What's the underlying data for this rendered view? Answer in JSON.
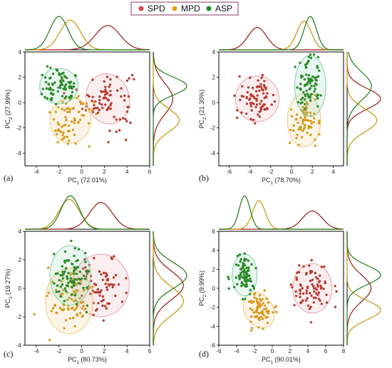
{
  "legend": {
    "entries": [
      {
        "name": "SPD",
        "color": "#e0404a"
      },
      {
        "name": "MPD",
        "color": "#e8a020"
      },
      {
        "name": "ASP",
        "color": "#1a8a2a"
      }
    ]
  },
  "colors": {
    "SPD": {
      "point": "#b83a30",
      "curve": "#9b1b10",
      "ellipse": "#e8a0a8"
    },
    "MPD": {
      "point": "#d89a20",
      "curve": "#c8940a",
      "ellipse": "#f0c878"
    },
    "ASP": {
      "point": "#2a8a2a",
      "curve": "#1a7a1a",
      "ellipse": "#7fd0a8"
    }
  },
  "chart_data": [
    {
      "type": "scatter",
      "panel_label": "(a)",
      "xlabel": "PC",
      "xlabel_sub": "1",
      "xlabel_suffix": " (72.01%)",
      "ylabel": "PC",
      "ylabel_sub": "2",
      "ylabel_suffix": " (27.99%)",
      "xlim": [
        -5,
        6
      ],
      "ylim": [
        -5,
        4
      ],
      "xticks": [
        -4,
        -2,
        0,
        2,
        4,
        6
      ],
      "yticks": [
        -4,
        -2,
        0,
        2,
        4
      ],
      "series": [
        {
          "name": "SPD",
          "center": [
            2.3,
            0.3
          ],
          "spread": [
            1.1,
            1.2
          ],
          "ellipse": [
            1.9,
            2.0,
            -15
          ],
          "count": 80
        },
        {
          "name": "MPD",
          "center": [
            -1.0,
            -1.4
          ],
          "spread": [
            0.9,
            0.9
          ],
          "ellipse": [
            1.8,
            1.8,
            0
          ],
          "count": 70
        },
        {
          "name": "ASP",
          "center": [
            -2.0,
            1.3
          ],
          "spread": [
            0.8,
            0.7
          ],
          "ellipse": [
            1.7,
            1.4,
            0
          ],
          "count": 80
        }
      ]
    },
    {
      "type": "scatter",
      "panel_label": "(b)",
      "xlabel": "PC",
      "xlabel_sub": "1",
      "xlabel_suffix": " (78.70%)",
      "ylabel": "PC",
      "ylabel_sub": "2",
      "ylabel_suffix": " (21.30%)",
      "xlim": [
        -7,
        5
      ],
      "ylim": [
        -5,
        4
      ],
      "xticks": [
        -6,
        -4,
        -2,
        0,
        2,
        4
      ],
      "yticks": [
        -4,
        -2,
        0,
        2,
        4
      ],
      "series": [
        {
          "name": "SPD",
          "center": [
            -3.3,
            0.3
          ],
          "spread": [
            0.9,
            0.8
          ],
          "ellipse": [
            2.1,
            1.8,
            0
          ],
          "count": 80
        },
        {
          "name": "MPD",
          "center": [
            1.2,
            -1.4
          ],
          "spread": [
            0.7,
            0.9
          ],
          "ellipse": [
            1.6,
            2.1,
            0
          ],
          "count": 70
        },
        {
          "name": "ASP",
          "center": [
            1.8,
            1.3
          ],
          "spread": [
            0.6,
            1.1
          ],
          "ellipse": [
            1.5,
            2.4,
            0
          ],
          "count": 80
        }
      ]
    },
    {
      "type": "scatter",
      "panel_label": "(c)",
      "xlabel": "PC",
      "xlabel_sub": "1",
      "xlabel_suffix": " (80.73%)",
      "ylabel": "PC",
      "ylabel_sub": "2",
      "ylabel_suffix": " (19.27%)",
      "xlim": [
        -5,
        6
      ],
      "ylim": [
        -4,
        4
      ],
      "xticks": [
        -4,
        -2,
        0,
        2,
        4,
        6
      ],
      "yticks": [
        -4,
        -2,
        0,
        2,
        4
      ],
      "series": [
        {
          "name": "SPD",
          "center": [
            1.7,
            0.2
          ],
          "spread": [
            1.0,
            1.0
          ],
          "ellipse": [
            2.5,
            2.2,
            0
          ],
          "count": 80
        },
        {
          "name": "MPD",
          "center": [
            -1.1,
            -0.9
          ],
          "spread": [
            0.9,
            1.0
          ],
          "ellipse": [
            2.1,
            2.3,
            0
          ],
          "count": 80
        },
        {
          "name": "ASP",
          "center": [
            -1.0,
            0.9
          ],
          "spread": [
            0.8,
            0.9
          ],
          "ellipse": [
            1.8,
            2.1,
            0
          ],
          "count": 80
        }
      ]
    },
    {
      "type": "scatter",
      "panel_label": "(d)",
      "xlabel": "PC",
      "xlabel_sub": "1",
      "xlabel_suffix": " (90.01%)",
      "ylabel": "PC",
      "ylabel_sub": "2",
      "ylabel_suffix": " (9.99%)",
      "xlim": [
        -6,
        8
      ],
      "ylim": [
        -6,
        6
      ],
      "xticks": [
        -6,
        -4,
        -2,
        0,
        2,
        4,
        6,
        8
      ],
      "yticks": [
        -6,
        -4,
        -2,
        0,
        2,
        4,
        6
      ],
      "series": [
        {
          "name": "SPD",
          "center": [
            4.5,
            0.0
          ],
          "spread": [
            1.1,
            1.4
          ],
          "ellipse": [
            2.2,
            2.6,
            0
          ],
          "count": 80
        },
        {
          "name": "MPD",
          "center": [
            -1.5,
            -2.3
          ],
          "spread": [
            0.7,
            1.0
          ],
          "ellipse": [
            1.6,
            2.0,
            -30
          ],
          "count": 70
        },
        {
          "name": "ASP",
          "center": [
            -3.1,
            1.4
          ],
          "spread": [
            0.6,
            1.0
          ],
          "ellipse": [
            1.4,
            2.2,
            0
          ],
          "count": 80
        }
      ]
    }
  ]
}
